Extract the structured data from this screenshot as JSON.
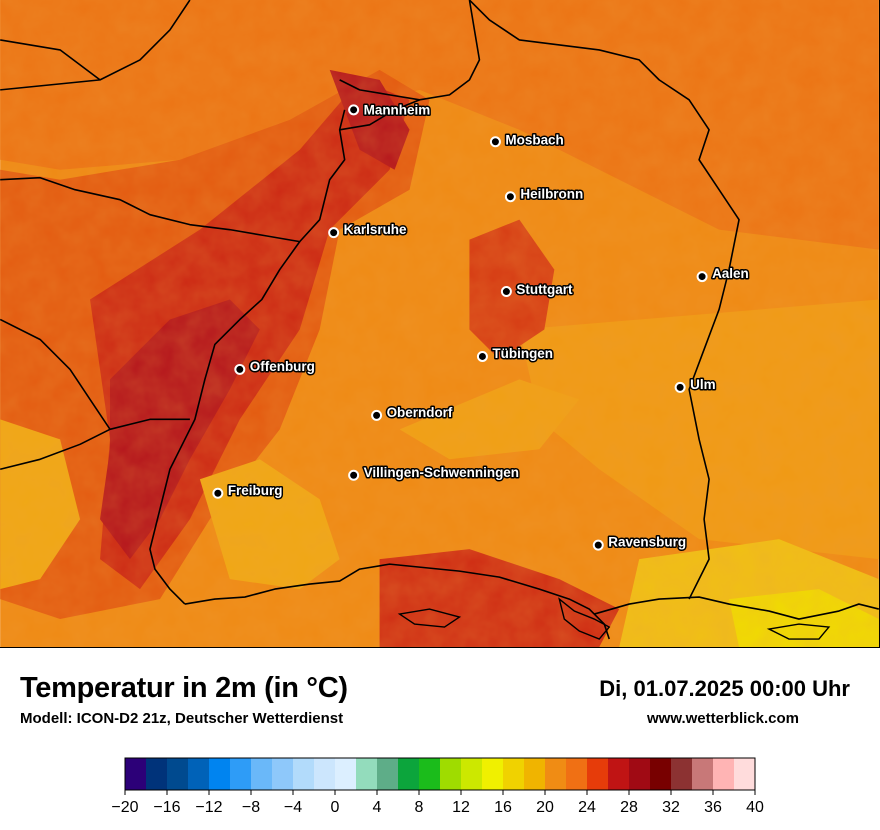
{
  "title": "Temperatur in 2m (in °C)",
  "subtitle": "Modell: ICON-D2 21z, Deutscher Wetterdienst",
  "datetime": "Di, 01.07.2025 00:00 Uhr",
  "website": "www.wetterblick.com",
  "cities": [
    {
      "name": "Mannheim"
    },
    {
      "name": "Mosbach"
    },
    {
      "name": "Heilbronn"
    },
    {
      "name": "Karlsruhe"
    },
    {
      "name": "Aalen"
    },
    {
      "name": "Stuttgart"
    },
    {
      "name": "Tübingen"
    },
    {
      "name": "Offenburg"
    },
    {
      "name": "Ulm"
    },
    {
      "name": "Oberndorf"
    },
    {
      "name": "Villingen-Schwenningen"
    },
    {
      "name": "Freiburg"
    },
    {
      "name": "Ravensburg"
    }
  ],
  "legend": {
    "colors": [
      "#2c0078",
      "#00337a",
      "#004a8f",
      "#0062b8",
      "#0084f0",
      "#2e9cf7",
      "#6ab8f9",
      "#8ec8fa",
      "#b2dbfb",
      "#cce6fd",
      "#dcefff",
      "#93dcbc",
      "#5ead88",
      "#0ca53c",
      "#1bbc1b",
      "#9fdc00",
      "#cce800",
      "#f0f000",
      "#f0d200",
      "#f0b400",
      "#f08c14",
      "#f07014",
      "#e63c0a",
      "#c01414",
      "#a00a14",
      "#780000",
      "#8c3232",
      "#c87878",
      "#ffb4b4",
      "#ffdcdc"
    ],
    "tick_labels": [
      "−20",
      "−16",
      "−12",
      "−8",
      "−4",
      "0",
      "4",
      "8",
      "12",
      "16",
      "20",
      "24",
      "28",
      "32",
      "36",
      "40"
    ]
  }
}
